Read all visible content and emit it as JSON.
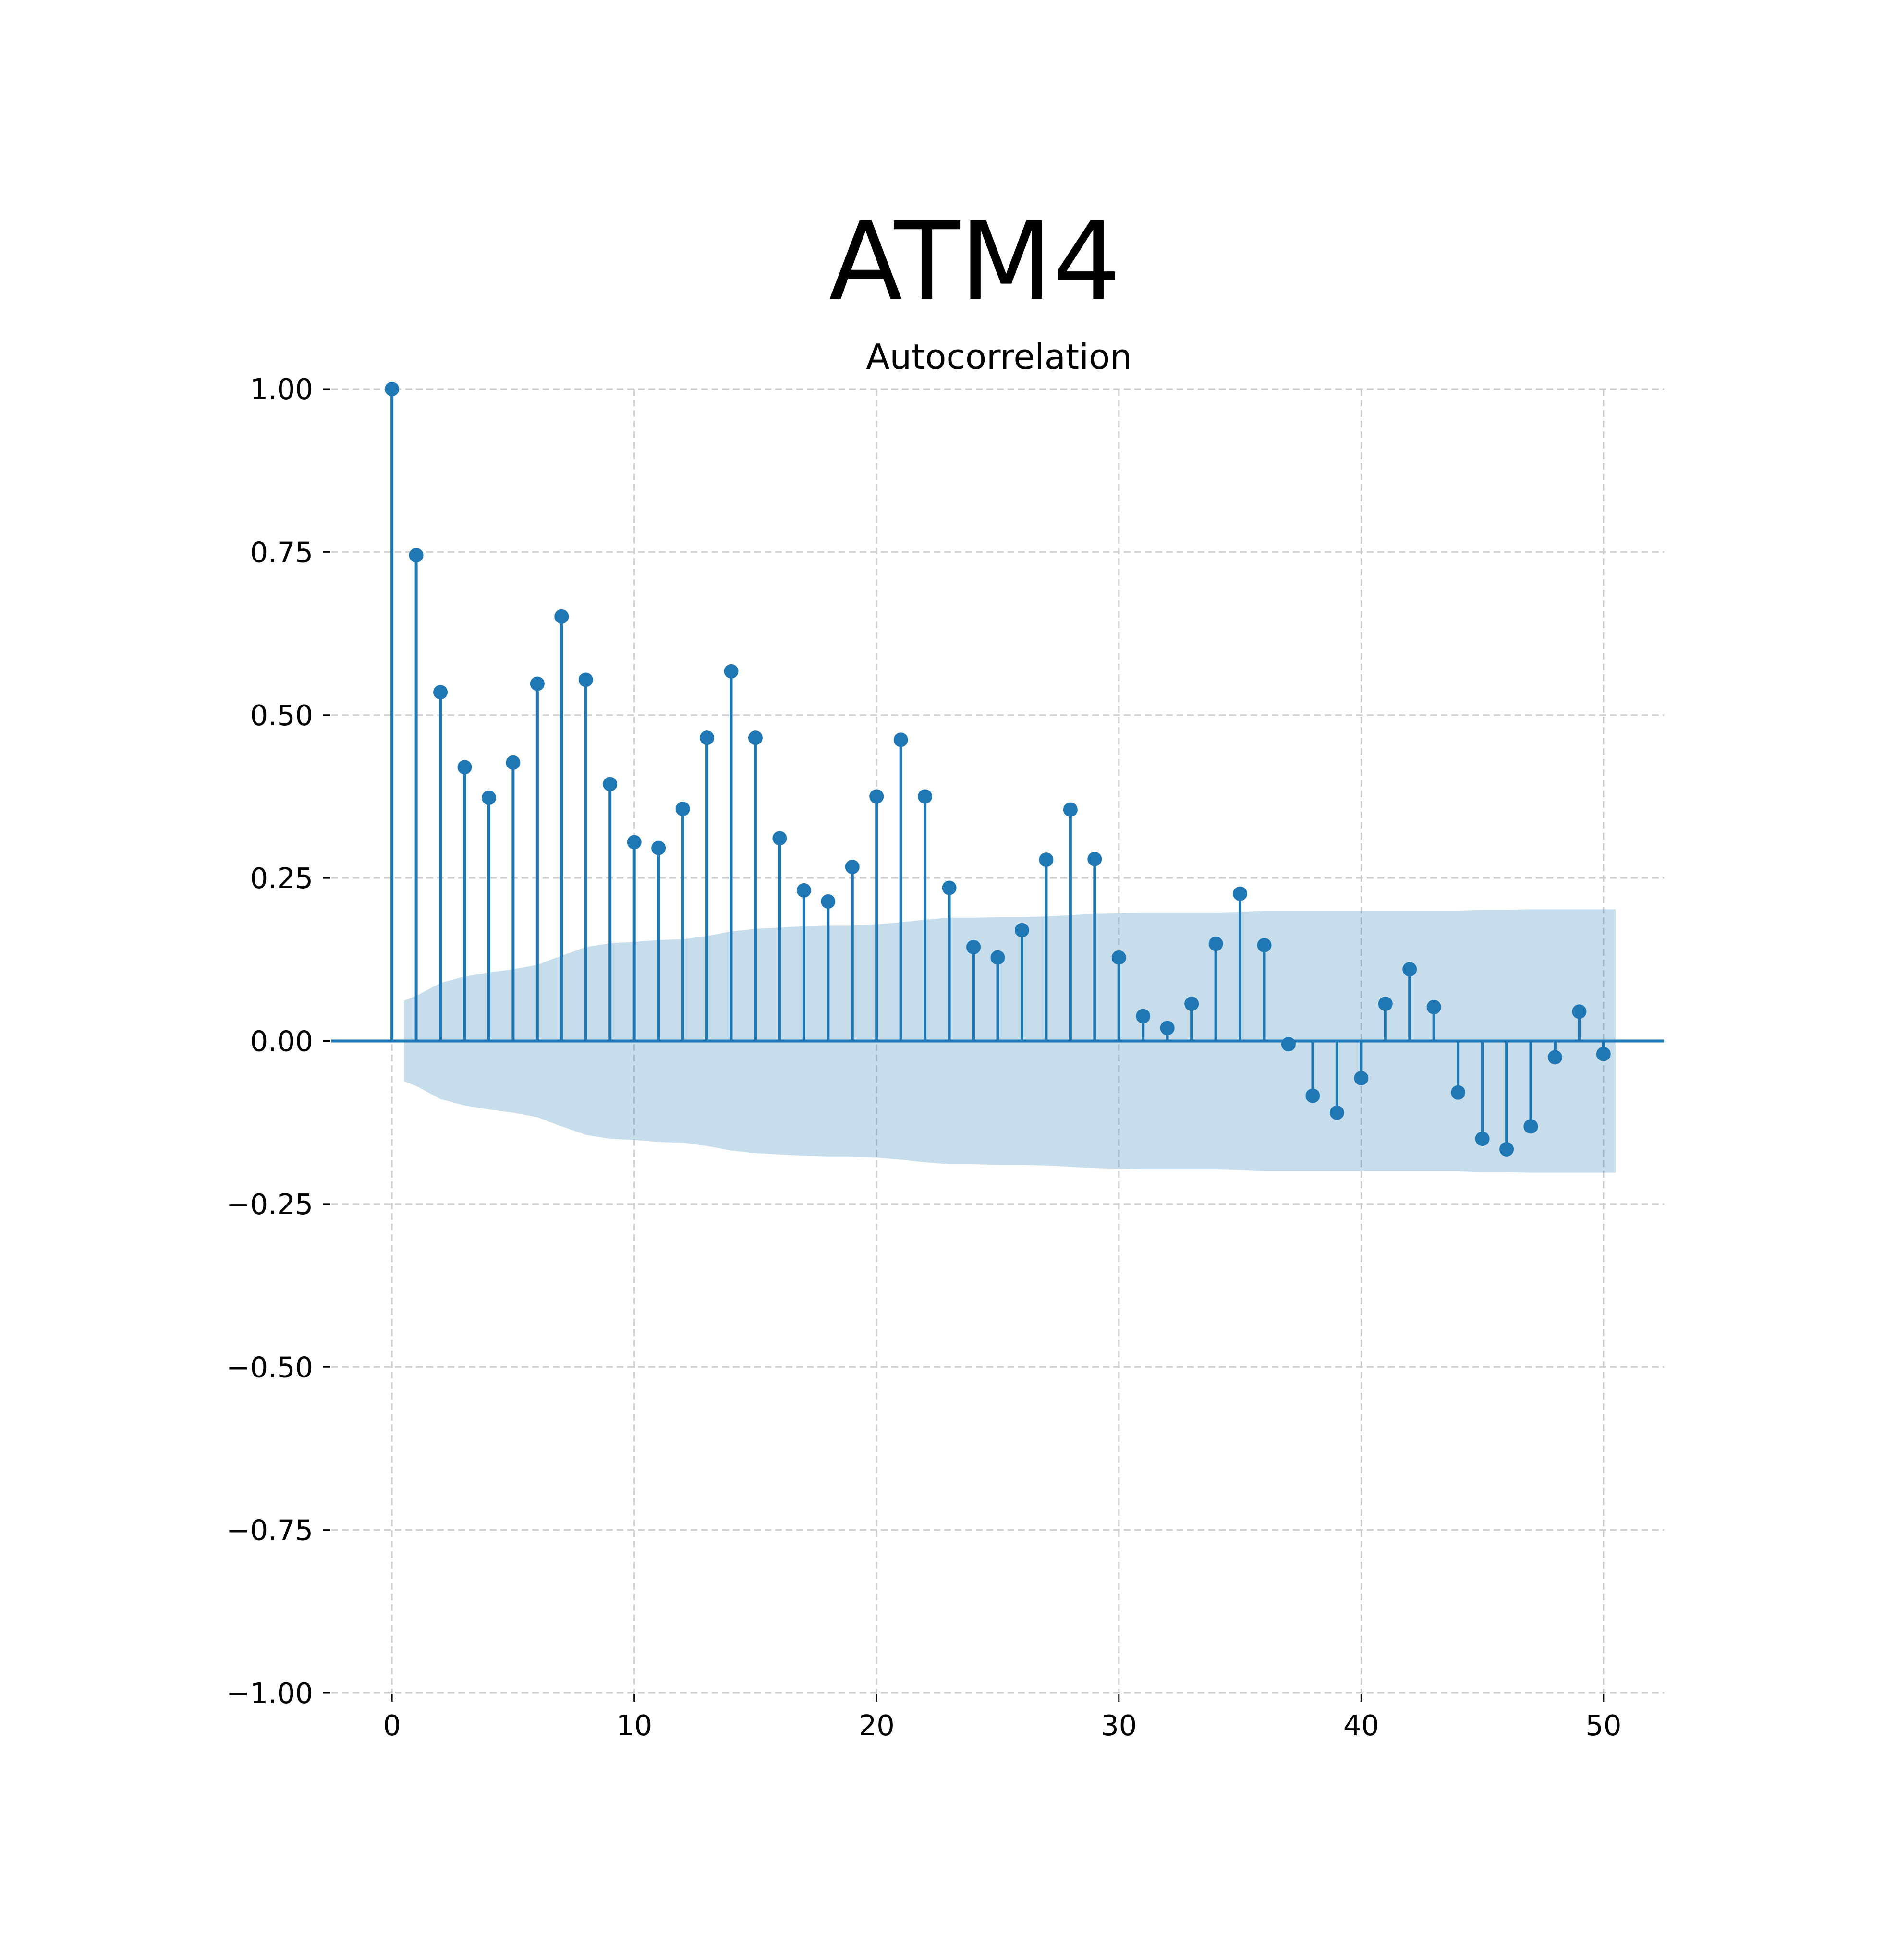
{
  "figure": {
    "suptitle": "ATM4"
  },
  "chart_data": {
    "type": "stem",
    "title": "Autocorrelation",
    "xlabel": "",
    "ylabel": "",
    "xlim": [
      -2.5,
      52.5
    ],
    "ylim": [
      -1.0,
      1.0
    ],
    "x_ticks": [
      0,
      10,
      20,
      30,
      40,
      50
    ],
    "x_tick_labels": [
      "0",
      "10",
      "20",
      "30",
      "40",
      "50"
    ],
    "y_ticks": [
      -1.0,
      -0.75,
      -0.5,
      -0.25,
      0.0,
      0.25,
      0.5,
      0.75,
      1.0
    ],
    "y_tick_labels": [
      "−1.00",
      "−0.75",
      "−0.50",
      "−0.25",
      "0.00",
      "0.25",
      "0.50",
      "0.75",
      "1.00"
    ],
    "grid": true,
    "grid_style": "dashed",
    "colors": {
      "stem": "#1f77b4",
      "confidence_band": "#1f77b4",
      "grid": "#cccccc"
    },
    "lags": [
      0,
      1,
      2,
      3,
      4,
      5,
      6,
      7,
      8,
      9,
      10,
      11,
      12,
      13,
      14,
      15,
      16,
      17,
      18,
      19,
      20,
      21,
      22,
      23,
      24,
      25,
      26,
      27,
      28,
      29,
      30,
      31,
      32,
      33,
      34,
      35,
      36,
      37,
      38,
      39,
      40,
      41,
      42,
      43,
      44,
      45,
      46,
      47,
      48,
      49,
      50
    ],
    "acf": [
      1.0,
      0.745,
      0.535,
      0.42,
      0.373,
      0.427,
      0.548,
      0.651,
      0.554,
      0.394,
      0.305,
      0.296,
      0.356,
      0.465,
      0.567,
      0.465,
      0.311,
      0.231,
      0.214,
      0.267,
      0.375,
      0.462,
      0.375,
      0.235,
      0.144,
      0.128,
      0.17,
      0.278,
      0.355,
      0.279,
      0.128,
      0.038,
      0.02,
      0.057,
      0.149,
      0.226,
      0.147,
      -0.005,
      -0.084,
      -0.11,
      -0.057,
      0.057,
      0.11,
      0.052,
      -0.079,
      -0.15,
      -0.166,
      -0.131,
      -0.025,
      0.045,
      -0.02
    ],
    "confidence_band": {
      "x_start": 0.5,
      "x_end": 50.5,
      "x": [
        0.5,
        1,
        2,
        3,
        4,
        5,
        6,
        7,
        8,
        9,
        10,
        11,
        12,
        13,
        14,
        15,
        16,
        17,
        18,
        19,
        20,
        21,
        22,
        23,
        24,
        25,
        26,
        27,
        28,
        29,
        30,
        31,
        32,
        33,
        34,
        35,
        36,
        37,
        38,
        39,
        40,
        41,
        42,
        43,
        44,
        45,
        46,
        47,
        48,
        49,
        50,
        50.5
      ],
      "upper": [
        0.062,
        0.069,
        0.089,
        0.099,
        0.105,
        0.11,
        0.117,
        0.131,
        0.144,
        0.15,
        0.152,
        0.155,
        0.156,
        0.161,
        0.168,
        0.172,
        0.174,
        0.176,
        0.177,
        0.177,
        0.179,
        0.182,
        0.186,
        0.189,
        0.189,
        0.19,
        0.19,
        0.191,
        0.193,
        0.195,
        0.196,
        0.197,
        0.197,
        0.197,
        0.197,
        0.198,
        0.2,
        0.2,
        0.2,
        0.2,
        0.2,
        0.2,
        0.2,
        0.2,
        0.2,
        0.201,
        0.201,
        0.202,
        0.202,
        0.202,
        0.202,
        0.202
      ]
    }
  }
}
